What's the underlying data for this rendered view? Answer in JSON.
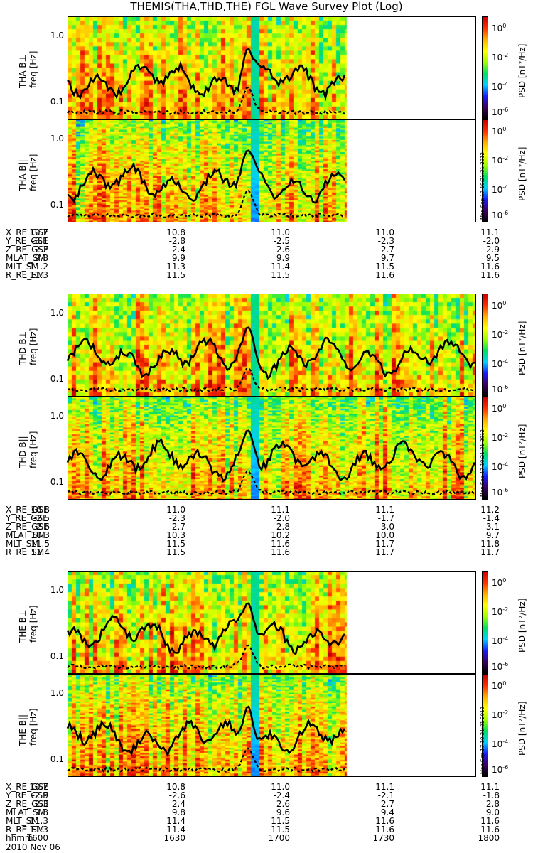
{
  "title": "THEMIS(THA,THD,THE) FGL Wave Survey Plot (Log)",
  "colors": {
    "frame": "#000000",
    "line": "#000000"
  },
  "colorbar": {
    "label": "PSD [nT²/Hz]",
    "ticks": [
      {
        "base": "10",
        "exp": "0"
      },
      {
        "base": "10",
        "exp": "-2"
      },
      {
        "base": "10",
        "exp": "-4"
      },
      {
        "base": "10",
        "exp": "-6"
      }
    ],
    "stamp": "Mon Sep 17 10:21:31 2012",
    "colormap": [
      "#000000",
      "#3a0060",
      "#1a1aff",
      "#00d0ff",
      "#00e060",
      "#a0ff00",
      "#ffff00",
      "#ffb000",
      "#ff3000",
      "#c80000"
    ]
  },
  "freq_ticks": [
    "1.0",
    "0.1"
  ],
  "freq_label": "freq [Hz]",
  "date_line": "2010 Nov 06",
  "chart_data": {
    "type": "heatmap",
    "xlabel": "hhmm",
    "x_ticks": [
      "1600",
      "1630",
      "1700",
      "1730",
      "1800"
    ],
    "ylabel": "freq [Hz]",
    "yscale": "log",
    "ylim": [
      0.055,
      2.0
    ],
    "zlabel": "PSD [nT^2/Hz]",
    "zlim_log10": [
      -6,
      1
    ],
    "panels": [
      {
        "probe": "THA",
        "label": "THA B⊥",
        "data_end_hhmm": "1722",
        "gap_at_hhmm": "1655",
        "solid_peak": {
          "time": "1653",
          "freq": 0.65
        },
        "dashed_peak": {
          "time": "1653",
          "freq": 0.17
        }
      },
      {
        "probe": "THA",
        "label": "THA B||",
        "data_end_hhmm": "1722",
        "gap_at_hhmm": "1655",
        "solid_peak": {
          "time": "1653",
          "freq": 0.68
        },
        "dashed_peak": {
          "time": "1653",
          "freq": 0.17
        }
      },
      {
        "probe": "THD",
        "label": "THD B⊥",
        "data_end_hhmm": "1800",
        "gap_at_hhmm": "1655",
        "solid_peak": {
          "time": "1653",
          "freq": 0.62
        },
        "dashed_peak": {
          "time": "1653",
          "freq": 0.15
        }
      },
      {
        "probe": "THD",
        "label": "THD B||",
        "data_end_hhmm": "1800",
        "gap_at_hhmm": "1655",
        "solid_peak": {
          "time": "1653",
          "freq": 0.62
        },
        "dashed_peak": {
          "time": "1653",
          "freq": 0.15
        }
      },
      {
        "probe": "THE",
        "label": "THE B⊥",
        "data_end_hhmm": "1722",
        "gap_at_hhmm": "1655",
        "solid_peak": {
          "time": "1653",
          "freq": 0.65
        },
        "dashed_peak": {
          "time": "1653",
          "freq": 0.15
        }
      },
      {
        "probe": "THE",
        "label": "THE B||",
        "data_end_hhmm": "1722",
        "gap_at_hhmm": "1655",
        "solid_peak": {
          "time": "1653",
          "freq": 0.65
        },
        "dashed_peak": {
          "time": "1653",
          "freq": 0.15
        }
      }
    ]
  },
  "orbit_blocks": [
    {
      "rows": [
        {
          "label": "X_RE_GSE",
          "values": [
            "10.7",
            "10.8",
            "11.0",
            "11.0",
            "11.1"
          ]
        },
        {
          "label": "Y_RE_GSE",
          "values": [
            "-3.1",
            "-2.8",
            "-2.5",
            "-2.3",
            "-2.0"
          ]
        },
        {
          "label": "Z_RE_GSE",
          "values": [
            "2.2",
            "2.4",
            "2.6",
            "2.7",
            "2.9"
          ]
        },
        {
          "label": "MLAT_SM",
          "values": [
            "9.8",
            "9.9",
            "9.9",
            "9.7",
            "9.5"
          ]
        },
        {
          "label": "MLT_SM",
          "values": [
            "11.2",
            "11.3",
            "11.4",
            "11.5",
            "11.6"
          ]
        },
        {
          "label": "R_RE_SM",
          "values": [
            "11.3",
            "11.5",
            "11.5",
            "11.6",
            "11.6"
          ]
        }
      ]
    },
    {
      "rows": [
        {
          "label": "X_RE_GSE",
          "values": [
            "10.8",
            "11.0",
            "11.1",
            "11.1",
            "11.2"
          ]
        },
        {
          "label": "Y_RE_GSE",
          "values": [
            "-2.5",
            "-2.3",
            "-2.0",
            "-1.7",
            "-1.4"
          ]
        },
        {
          "label": "Z_RE_GSE",
          "values": [
            "2.6",
            "2.7",
            "2.8",
            "3.0",
            "3.1"
          ]
        },
        {
          "label": "MLAT_SM",
          "values": [
            "10.3",
            "10.3",
            "10.2",
            "10.0",
            "9.7"
          ]
        },
        {
          "label": "MLT_SM",
          "values": [
            "11.5",
            "11.5",
            "11.6",
            "11.7",
            "11.8"
          ]
        },
        {
          "label": "R_RE_SM",
          "values": [
            "11.4",
            "11.5",
            "11.6",
            "11.7",
            "11.7"
          ]
        }
      ]
    },
    {
      "rows": [
        {
          "label": "X_RE_GSE",
          "values": [
            "10.7",
            "10.8",
            "11.0",
            "11.1",
            "11.1"
          ]
        },
        {
          "label": "Y_RE_GSE",
          "values": [
            "-2.9",
            "-2.6",
            "-2.4",
            "-2.1",
            "-1.8"
          ]
        },
        {
          "label": "Z_RE_GSE",
          "values": [
            "2.3",
            "2.4",
            "2.6",
            "2.7",
            "2.8"
          ]
        },
        {
          "label": "MLAT_SM",
          "values": [
            "9.8",
            "9.8",
            "9.6",
            "9.4",
            "9.0"
          ]
        },
        {
          "label": "MLT_SM",
          "values": [
            "11.3",
            "11.4",
            "11.5",
            "11.6",
            "11.6"
          ]
        },
        {
          "label": "R_RE_SM",
          "values": [
            "11.3",
            "11.4",
            "11.5",
            "11.6",
            "11.6"
          ]
        },
        {
          "label": "hhmm",
          "values": [
            "1600",
            "1630",
            "1700",
            "1730",
            "1800"
          ]
        }
      ]
    }
  ]
}
